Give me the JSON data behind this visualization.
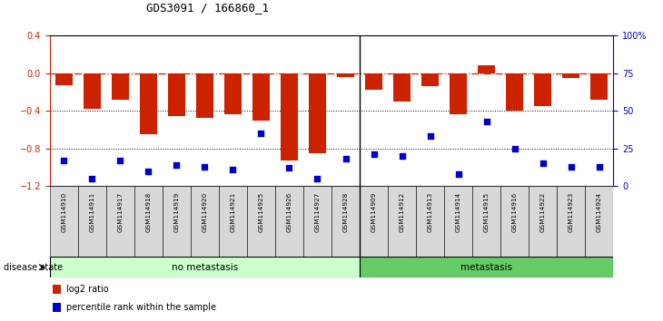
{
  "title": "GDS3091 / 166860_1",
  "samples": [
    "GSM114910",
    "GSM114911",
    "GSM114917",
    "GSM114918",
    "GSM114919",
    "GSM114920",
    "GSM114921",
    "GSM114925",
    "GSM114926",
    "GSM114927",
    "GSM114928",
    "GSM114909",
    "GSM114912",
    "GSM114913",
    "GSM114914",
    "GSM114915",
    "GSM114916",
    "GSM114922",
    "GSM114923",
    "GSM114924"
  ],
  "log2_ratio": [
    -0.13,
    -0.38,
    -0.28,
    -0.65,
    -0.46,
    -0.48,
    -0.44,
    -0.5,
    -0.93,
    -0.85,
    -0.04,
    -0.18,
    -0.3,
    -0.14,
    -0.44,
    0.08,
    -0.4,
    -0.35,
    -0.05,
    -0.28
  ],
  "percentile_rank": [
    17,
    5,
    17,
    10,
    14,
    13,
    11,
    35,
    12,
    5,
    18,
    21,
    20,
    33,
    8,
    43,
    25,
    15,
    13,
    13
  ],
  "group_labels": [
    "no metastasis",
    "metastasis"
  ],
  "group_counts": [
    11,
    9
  ],
  "bar_color": "#cc2200",
  "dot_color": "#0000cc",
  "dashed_color": "#cc2200",
  "no_metastasis_color": "#ccffcc",
  "metastasis_color": "#66cc66",
  "left_ylim": [
    -1.2,
    0.4
  ],
  "right_ylim": [
    0,
    100
  ],
  "left_yticks": [
    -1.2,
    -0.8,
    -0.4,
    0.0,
    0.4
  ],
  "right_yticks": [
    0,
    25,
    50,
    75,
    100
  ],
  "right_yticklabels": [
    "0",
    "25",
    "50",
    "75",
    "100%"
  ],
  "disease_state_label": "disease state"
}
